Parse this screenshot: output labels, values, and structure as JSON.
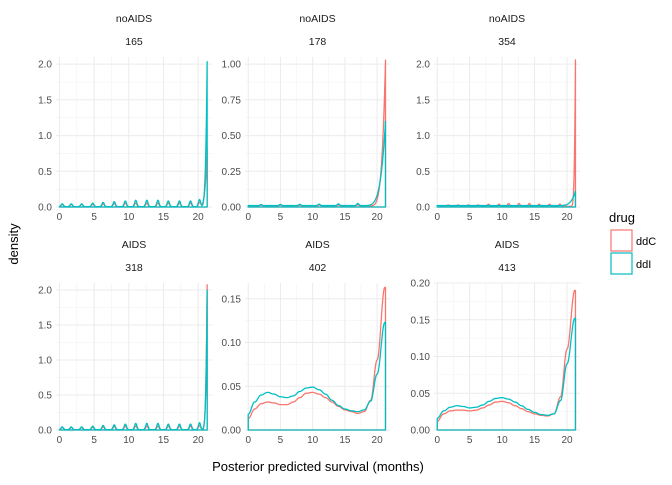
{
  "chart_data": {
    "type": "density",
    "xlabel": "Posterior predicted survival (months)",
    "ylabel": "density",
    "legend": {
      "title": "drug",
      "placement": "right",
      "entries": [
        {
          "name": "ddC",
          "color": "#F8766D"
        },
        {
          "name": "ddI",
          "color": "#00BFC4"
        }
      ]
    },
    "x_ticks": [
      0,
      5,
      10,
      15,
      20
    ],
    "xlim": [
      -0.5,
      22
    ],
    "grid": true,
    "panels": [
      {
        "strip_top": "noAIDS",
        "strip_bottom": "165",
        "ylim": [
          0,
          2.1
        ],
        "y_ticks": [
          0,
          0.5,
          1,
          1.5,
          2
        ],
        "y_tick_labels": [
          "0.0",
          "0.5",
          "1.0",
          "1.5",
          "2.0"
        ],
        "series": [
          {
            "name": "ddC",
            "spikes": [
              {
                "x": 0.4,
                "h": 0.03
              },
              {
                "x": 1.7,
                "h": 0.03
              },
              {
                "x": 3.2,
                "h": 0.03
              },
              {
                "x": 4.8,
                "h": 0.035
              },
              {
                "x": 6.3,
                "h": 0.04
              },
              {
                "x": 7.9,
                "h": 0.045
              },
              {
                "x": 9.5,
                "h": 0.05
              },
              {
                "x": 11.0,
                "h": 0.05
              },
              {
                "x": 12.6,
                "h": 0.05
              },
              {
                "x": 14.2,
                "h": 0.05
              },
              {
                "x": 15.7,
                "h": 0.05
              },
              {
                "x": 17.3,
                "h": 0.05
              },
              {
                "x": 18.9,
                "h": 0.05
              },
              {
                "x": 20.2,
                "h": 0.06
              }
            ],
            "baseline": 0.005,
            "tail": {
              "start": 19.8,
              "end": 21.3,
              "peak": 0.8
            }
          },
          {
            "name": "ddI",
            "spikes": [
              {
                "x": 0.4,
                "h": 0.04
              },
              {
                "x": 1.7,
                "h": 0.04
              },
              {
                "x": 3.2,
                "h": 0.04
              },
              {
                "x": 4.8,
                "h": 0.05
              },
              {
                "x": 6.3,
                "h": 0.06
              },
              {
                "x": 7.9,
                "h": 0.07
              },
              {
                "x": 9.5,
                "h": 0.08
              },
              {
                "x": 11.0,
                "h": 0.09
              },
              {
                "x": 12.6,
                "h": 0.09
              },
              {
                "x": 14.2,
                "h": 0.09
              },
              {
                "x": 15.7,
                "h": 0.08
              },
              {
                "x": 17.3,
                "h": 0.08
              },
              {
                "x": 18.9,
                "h": 0.08
              },
              {
                "x": 20.2,
                "h": 0.1
              }
            ],
            "baseline": 0.005,
            "tail": {
              "start": 20.2,
              "end": 21.3,
              "peak": 2.03
            }
          }
        ]
      },
      {
        "strip_top": "noAIDS",
        "strip_bottom": "178",
        "ylim": [
          0,
          1.05
        ],
        "y_ticks": [
          0,
          0.25,
          0.5,
          0.75,
          1
        ],
        "y_tick_labels": [
          "0.00",
          "0.25",
          "0.50",
          "0.75",
          "1.00"
        ],
        "series": [
          {
            "name": "ddC",
            "spikes": [
              {
                "x": 2,
                "h": 0.005
              },
              {
                "x": 5,
                "h": 0.005
              },
              {
                "x": 8,
                "h": 0.005
              },
              {
                "x": 11,
                "h": 0.006
              },
              {
                "x": 14,
                "h": 0.006
              },
              {
                "x": 17,
                "h": 0.007
              }
            ],
            "baseline": 0.008,
            "tail": {
              "start": 18.5,
              "end": 21.3,
              "peak": 1.02
            }
          },
          {
            "name": "ddI",
            "spikes": [
              {
                "x": 2,
                "h": 0.007
              },
              {
                "x": 5,
                "h": 0.008
              },
              {
                "x": 8,
                "h": 0.009
              },
              {
                "x": 11,
                "h": 0.01
              },
              {
                "x": 14,
                "h": 0.012
              },
              {
                "x": 17,
                "h": 0.015
              }
            ],
            "baseline": 0.01,
            "tail": {
              "start": 17.5,
              "end": 21.3,
              "peak": 0.59
            }
          }
        ]
      },
      {
        "strip_top": "noAIDS",
        "strip_bottom": "354",
        "ylim": [
          0,
          2.1
        ],
        "y_ticks": [
          0,
          0.5,
          1,
          1.5,
          2
        ],
        "y_tick_labels": [
          "0.0",
          "0.5",
          "1.0",
          "1.5",
          "2.0"
        ],
        "series": [
          {
            "name": "ddC",
            "spikes": [
              {
                "x": 1.7,
                "h": 0.02
              },
              {
                "x": 3.2,
                "h": 0.02
              },
              {
                "x": 4.8,
                "h": 0.02
              },
              {
                "x": 6.3,
                "h": 0.02
              },
              {
                "x": 7.9,
                "h": 0.03
              },
              {
                "x": 9.5,
                "h": 0.03
              },
              {
                "x": 11.0,
                "h": 0.04
              },
              {
                "x": 12.6,
                "h": 0.04
              },
              {
                "x": 14.2,
                "h": 0.04
              },
              {
                "x": 15.7,
                "h": 0.03
              },
              {
                "x": 17.3,
                "h": 0.03
              },
              {
                "x": 18.9,
                "h": 0.03
              }
            ],
            "baseline": 0.01,
            "tail": {
              "start": 20.5,
              "end": 21.3,
              "peak": 2.05
            }
          },
          {
            "name": "ddI",
            "spikes": [],
            "baseline": 0.02,
            "tail": {
              "start": 18.0,
              "end": 21.3,
              "peak": 0.2
            }
          }
        ]
      },
      {
        "strip_top": "AIDS",
        "strip_bottom": "318",
        "ylim": [
          0,
          2.1
        ],
        "y_ticks": [
          0,
          0.5,
          1,
          1.5,
          2
        ],
        "y_tick_labels": [
          "0.0",
          "0.5",
          "1.0",
          "1.5",
          "2.0"
        ],
        "series": [
          {
            "name": "ddC",
            "spikes": [
              {
                "x": 0.4,
                "h": 0.03
              },
              {
                "x": 1.7,
                "h": 0.03
              },
              {
                "x": 3.2,
                "h": 0.03
              },
              {
                "x": 4.8,
                "h": 0.035
              },
              {
                "x": 6.3,
                "h": 0.04
              },
              {
                "x": 7.9,
                "h": 0.045
              },
              {
                "x": 9.5,
                "h": 0.05
              },
              {
                "x": 11.0,
                "h": 0.05
              },
              {
                "x": 12.6,
                "h": 0.05
              },
              {
                "x": 14.2,
                "h": 0.05
              },
              {
                "x": 15.7,
                "h": 0.05
              },
              {
                "x": 17.3,
                "h": 0.05
              },
              {
                "x": 18.9,
                "h": 0.05
              },
              {
                "x": 20.2,
                "h": 0.06
              }
            ],
            "baseline": 0.005,
            "tail": {
              "start": 20.4,
              "end": 21.3,
              "peak": 2.07
            }
          },
          {
            "name": "ddI",
            "spikes": [
              {
                "x": 0.4,
                "h": 0.04
              },
              {
                "x": 1.7,
                "h": 0.04
              },
              {
                "x": 3.2,
                "h": 0.04
              },
              {
                "x": 4.8,
                "h": 0.05
              },
              {
                "x": 6.3,
                "h": 0.06
              },
              {
                "x": 7.9,
                "h": 0.07
              },
              {
                "x": 9.5,
                "h": 0.08
              },
              {
                "x": 11.0,
                "h": 0.09
              },
              {
                "x": 12.6,
                "h": 0.09
              },
              {
                "x": 14.2,
                "h": 0.09
              },
              {
                "x": 15.7,
                "h": 0.08
              },
              {
                "x": 17.3,
                "h": 0.08
              },
              {
                "x": 18.9,
                "h": 0.08
              },
              {
                "x": 20.2,
                "h": 0.1
              }
            ],
            "baseline": 0.005,
            "tail": {
              "start": 20.4,
              "end": 21.3,
              "peak": 1.99
            }
          }
        ]
      },
      {
        "strip_top": "AIDS",
        "strip_bottom": "402",
        "ylim": [
          0,
          0.168
        ],
        "y_ticks": [
          0,
          0.05,
          0.1,
          0.15
        ],
        "y_tick_labels": [
          "0.00",
          "0.05",
          "0.10",
          "0.15"
        ],
        "series": [
          {
            "name": "ddC",
            "x": [
              0,
              1,
              2,
              3,
              4,
              5,
              6,
              7,
              8,
              9,
              10,
              11,
              12,
              13,
              14,
              15,
              16,
              17,
              18,
              19,
              20,
              21.2
            ],
            "y": [
              0.013,
              0.024,
              0.03,
              0.032,
              0.031,
              0.029,
              0.029,
              0.032,
              0.037,
              0.042,
              0.043,
              0.041,
              0.037,
              0.032,
              0.027,
              0.023,
              0.021,
              0.019,
              0.021,
              0.034,
              0.08,
              0.163
            ]
          },
          {
            "name": "ddI",
            "x": [
              0,
              1,
              2,
              3,
              4,
              5,
              6,
              7,
              8,
              9,
              10,
              11,
              12,
              13,
              14,
              15,
              16,
              17,
              18,
              19,
              20,
              21.2
            ],
            "y": [
              0.018,
              0.032,
              0.04,
              0.043,
              0.041,
              0.038,
              0.037,
              0.039,
              0.044,
              0.048,
              0.049,
              0.046,
              0.041,
              0.034,
              0.028,
              0.024,
              0.022,
              0.021,
              0.023,
              0.033,
              0.064,
              0.123
            ]
          }
        ]
      },
      {
        "strip_top": "AIDS",
        "strip_bottom": "413",
        "ylim": [
          0,
          0.2
        ],
        "y_ticks": [
          0,
          0.05,
          0.1,
          0.15,
          0.2
        ],
        "y_tick_labels": [
          "0.00",
          "0.05",
          "0.10",
          "0.15",
          "0.20"
        ],
        "series": [
          {
            "name": "ddC",
            "x": [
              0,
              1,
              2,
              3,
              4,
              5,
              6,
              7,
              8,
              9,
              10,
              11,
              12,
              13,
              14,
              15,
              16,
              17,
              18,
              19,
              20,
              21.2
            ],
            "y": [
              0.012,
              0.022,
              0.026,
              0.027,
              0.027,
              0.026,
              0.027,
              0.03,
              0.034,
              0.038,
              0.039,
              0.037,
              0.033,
              0.029,
              0.025,
              0.022,
              0.02,
              0.019,
              0.022,
              0.045,
              0.11,
              0.19
            ]
          },
          {
            "name": "ddI",
            "x": [
              0,
              1,
              2,
              3,
              4,
              5,
              6,
              7,
              8,
              9,
              10,
              11,
              12,
              13,
              14,
              15,
              16,
              17,
              18,
              19,
              20,
              21.2
            ],
            "y": [
              0.016,
              0.026,
              0.031,
              0.033,
              0.032,
              0.03,
              0.031,
              0.034,
              0.039,
              0.043,
              0.044,
              0.042,
              0.038,
              0.033,
              0.028,
              0.024,
              0.021,
              0.02,
              0.022,
              0.04,
              0.09,
              0.152
            ]
          }
        ]
      }
    ]
  }
}
